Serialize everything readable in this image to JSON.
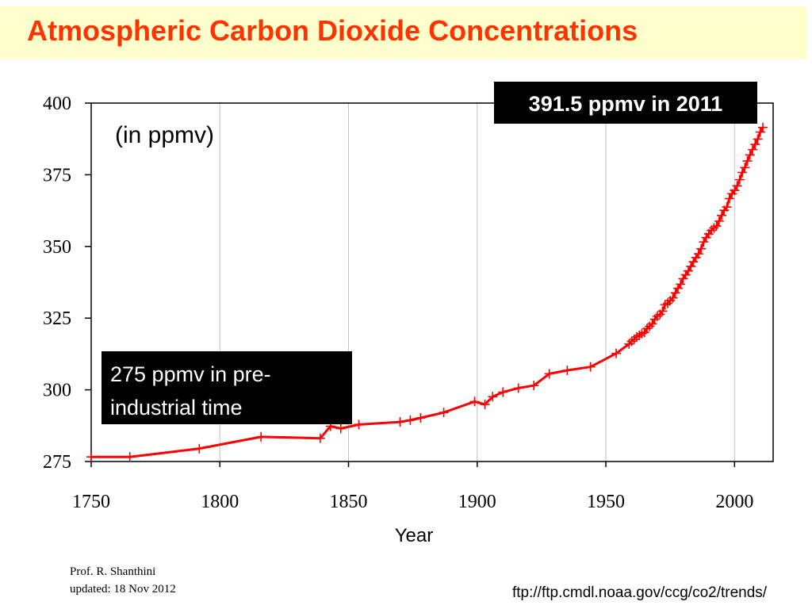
{
  "slide": {
    "title": "Atmospheric Carbon Dioxide Concentrations",
    "author": "Prof. R. Shanthini",
    "updated": "updated: 18 Nov 2012",
    "source": "ftp://ftp.cmdl.noaa.gov/ccg/co2/trends/"
  },
  "colors": {
    "title": "#ff3300",
    "title_background": "#ffffcc",
    "series": "#ff0000",
    "callout_background": "#000000",
    "callout_text": "#ffffff",
    "grid": "#c0c0c0"
  },
  "chart_data": {
    "type": "line",
    "xlabel": "Year",
    "ylabel": "",
    "unit_note": "(in ppmv)",
    "xlim": [
      1750,
      2015
    ],
    "ylim": [
      275,
      400
    ],
    "x_ticks": [
      1750,
      1800,
      1850,
      1900,
      1950,
      2000
    ],
    "y_ticks": [
      275,
      300,
      325,
      350,
      375,
      400
    ],
    "grid": "vertical lines at x ticks",
    "annotations": [
      {
        "text": "391.5 ppmv in 2011",
        "placement": "top-right"
      },
      {
        "text_lines": [
          "275 ppmv in pre-",
          "industrial time"
        ],
        "placement": "bottom-left"
      }
    ],
    "series": [
      {
        "marker": "+",
        "x": [
          1750,
          1765,
          1792,
          1816,
          1839,
          1843,
          1847,
          1854,
          1870,
          1874,
          1878,
          1887,
          1899,
          1903,
          1906,
          1910,
          1916,
          1922,
          1928,
          1935,
          1944,
          1954,
          1959,
          1960,
          1961,
          1962,
          1963,
          1964,
          1965,
          1966,
          1967,
          1968,
          1969,
          1970,
          1971,
          1972,
          1973,
          1974,
          1975,
          1976,
          1977,
          1978,
          1979,
          1980,
          1981,
          1982,
          1983,
          1984,
          1985,
          1986,
          1987,
          1988,
          1989,
          1990,
          1991,
          1992,
          1993,
          1994,
          1995,
          1996,
          1997,
          1998,
          1999,
          2000,
          2001,
          2002,
          2003,
          2004,
          2005,
          2006,
          2007,
          2008,
          2009,
          2010,
          2011
        ],
        "y": [
          276.6,
          276.6,
          279.5,
          283.6,
          283.1,
          287.3,
          286.5,
          287.9,
          288.8,
          289.4,
          290.2,
          292.1,
          295.9,
          294.9,
          297.6,
          299.2,
          300.6,
          301.5,
          305.6,
          306.8,
          308.0,
          312.7,
          315.97,
          316.91,
          317.64,
          318.45,
          318.99,
          319.62,
          320.04,
          321.38,
          322.16,
          323.04,
          324.62,
          325.68,
          326.32,
          327.45,
          329.68,
          330.18,
          331.11,
          332.04,
          333.83,
          335.4,
          336.84,
          338.75,
          340.11,
          341.45,
          343.05,
          344.65,
          346.12,
          347.42,
          349.19,
          351.57,
          353.12,
          354.39,
          355.61,
          356.45,
          357.1,
          358.83,
          360.82,
          362.61,
          363.73,
          366.7,
          368.38,
          369.55,
          371.14,
          373.28,
          375.8,
          377.52,
          379.8,
          381.9,
          383.79,
          385.6,
          387.43,
          389.9,
          391.5
        ]
      }
    ]
  }
}
